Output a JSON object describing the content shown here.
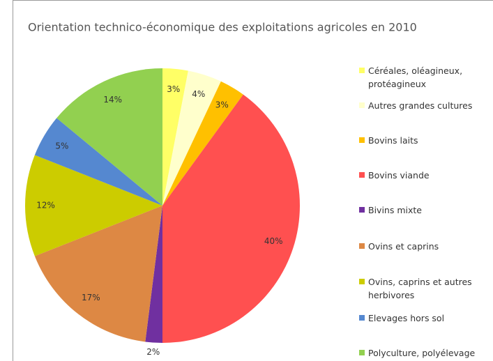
{
  "chart_data": {
    "type": "pie",
    "title": "Orientation technico-économique des exploitations agricoles en 2010",
    "categories": [
      "Céréales, oléagineux, protéagineux",
      "Autres grandes cultures",
      "Bovins laits",
      "Bovins viande",
      "Bivins mixte",
      "Ovins et caprins",
      "Ovins, caprins et autres herbivores",
      "Elevages hors sol",
      "Polyculture, polyélevage"
    ],
    "values": [
      3,
      4,
      3,
      40,
      2,
      17,
      12,
      5,
      14
    ],
    "value_labels": [
      "3%",
      "4%",
      "3%",
      "40%",
      "2%",
      "17%",
      "12%",
      "5%",
      "14%"
    ],
    "colors": [
      "#ffff66",
      "#ffffcc",
      "#ffc000",
      "#ff5050",
      "#7030a0",
      "#dd8844",
      "#cccc00",
      "#5588d0",
      "#92d050"
    ],
    "legend": "right"
  }
}
